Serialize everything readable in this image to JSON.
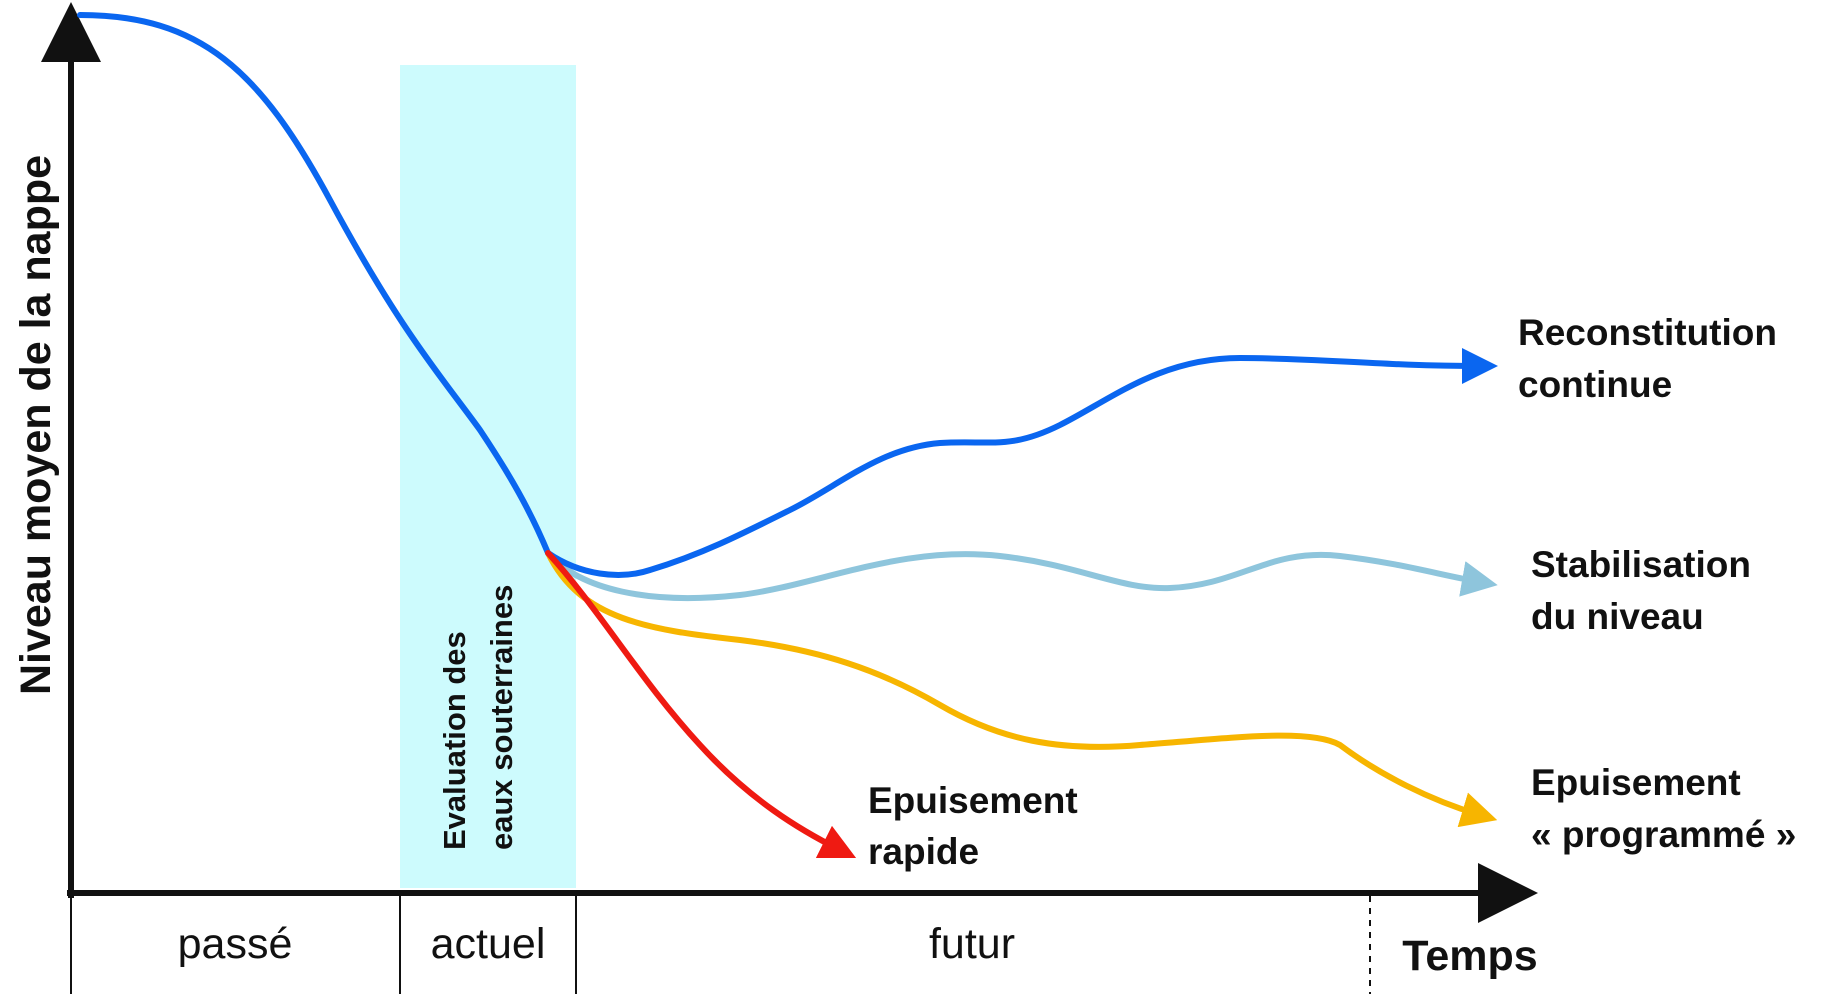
{
  "y_axis_label": "Niveau moyen de la nappe",
  "x_axis_label": "Temps",
  "band_label": {
    "line1": "Evaluation des",
    "line2": "eaux souterraines"
  },
  "periods": {
    "past": "passé",
    "present": "actuel",
    "future": "futur"
  },
  "scenarios": {
    "reconstitution": {
      "line1": "Reconstitution",
      "line2": "continue",
      "color": "#0a66f0"
    },
    "stabilisation": {
      "line1": "Stabilisation",
      "line2": "du niveau",
      "color": "#8ec5dc"
    },
    "programmed": {
      "line1": "Epuisement",
      "line2": "« programmé »",
      "color": "#f7b500"
    },
    "rapid": {
      "line1": "Epuisement",
      "line2": "rapide",
      "color": "#ef1a12"
    }
  },
  "colors": {
    "history_curve": "#0a66f0",
    "evaluation_band": "#cdfbfd",
    "axes": "#111111"
  }
}
